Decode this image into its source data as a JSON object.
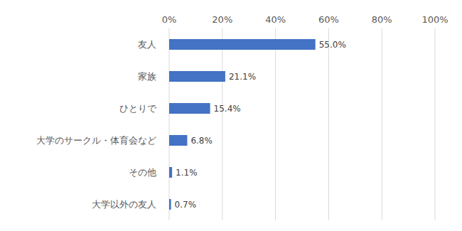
{
  "chart_data": {
    "type": "bar",
    "orientation": "horizontal",
    "categories": [
      "友人",
      "家族",
      "ひとりで",
      "大学のサークル・体育会など",
      "その他",
      "大学以外の友人"
    ],
    "values": [
      55.0,
      21.1,
      15.4,
      6.8,
      1.1,
      0.7
    ],
    "value_labels": [
      "55.0%",
      "21.1%",
      "15.4%",
      "6.8%",
      "1.1%",
      "0.7%"
    ],
    "color": "#4472c4",
    "xlim": [
      0,
      100
    ],
    "xticks": [
      {
        "value": 0,
        "label": "0%"
      },
      {
        "value": 20,
        "label": "20%"
      },
      {
        "value": 40,
        "label": "40%"
      },
      {
        "value": 60,
        "label": "60%"
      },
      {
        "value": 80,
        "label": "80%"
      },
      {
        "value": 100,
        "label": "100%"
      }
    ],
    "grid": true,
    "data_labels": true
  }
}
